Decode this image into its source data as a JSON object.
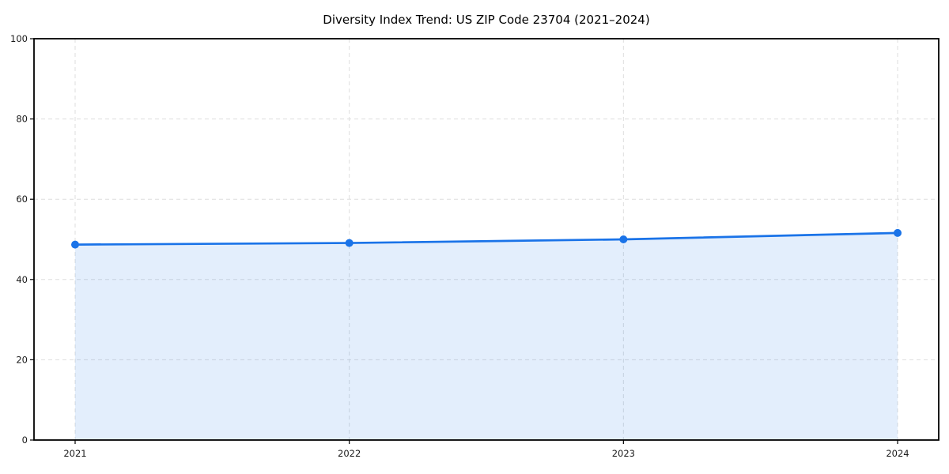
{
  "chart_data": {
    "type": "area",
    "title": "Diversity Index Trend: US ZIP Code 23704 (2021–2024)",
    "categories": [
      "2021",
      "2022",
      "2023",
      "2024"
    ],
    "series": [
      {
        "name": "Diversity Index",
        "values": [
          48.7,
          49.1,
          50.0,
          51.6
        ]
      }
    ],
    "xlabel": "",
    "ylabel": "",
    "ylim": [
      0,
      100
    ],
    "yticks": [
      0,
      20,
      40,
      60,
      80,
      100
    ],
    "grid": true,
    "grid_line_style": "dashed",
    "legend_position": "none",
    "marker_style": "circle",
    "colors": {
      "line": "#1a73e8",
      "marker": "#1a73e8",
      "area_fill": "rgba(26,115,232,0.12)",
      "gridline": "#dedede",
      "axis": "#000000",
      "tick_label": "#1a1a1a",
      "background": "#ffffff"
    }
  }
}
